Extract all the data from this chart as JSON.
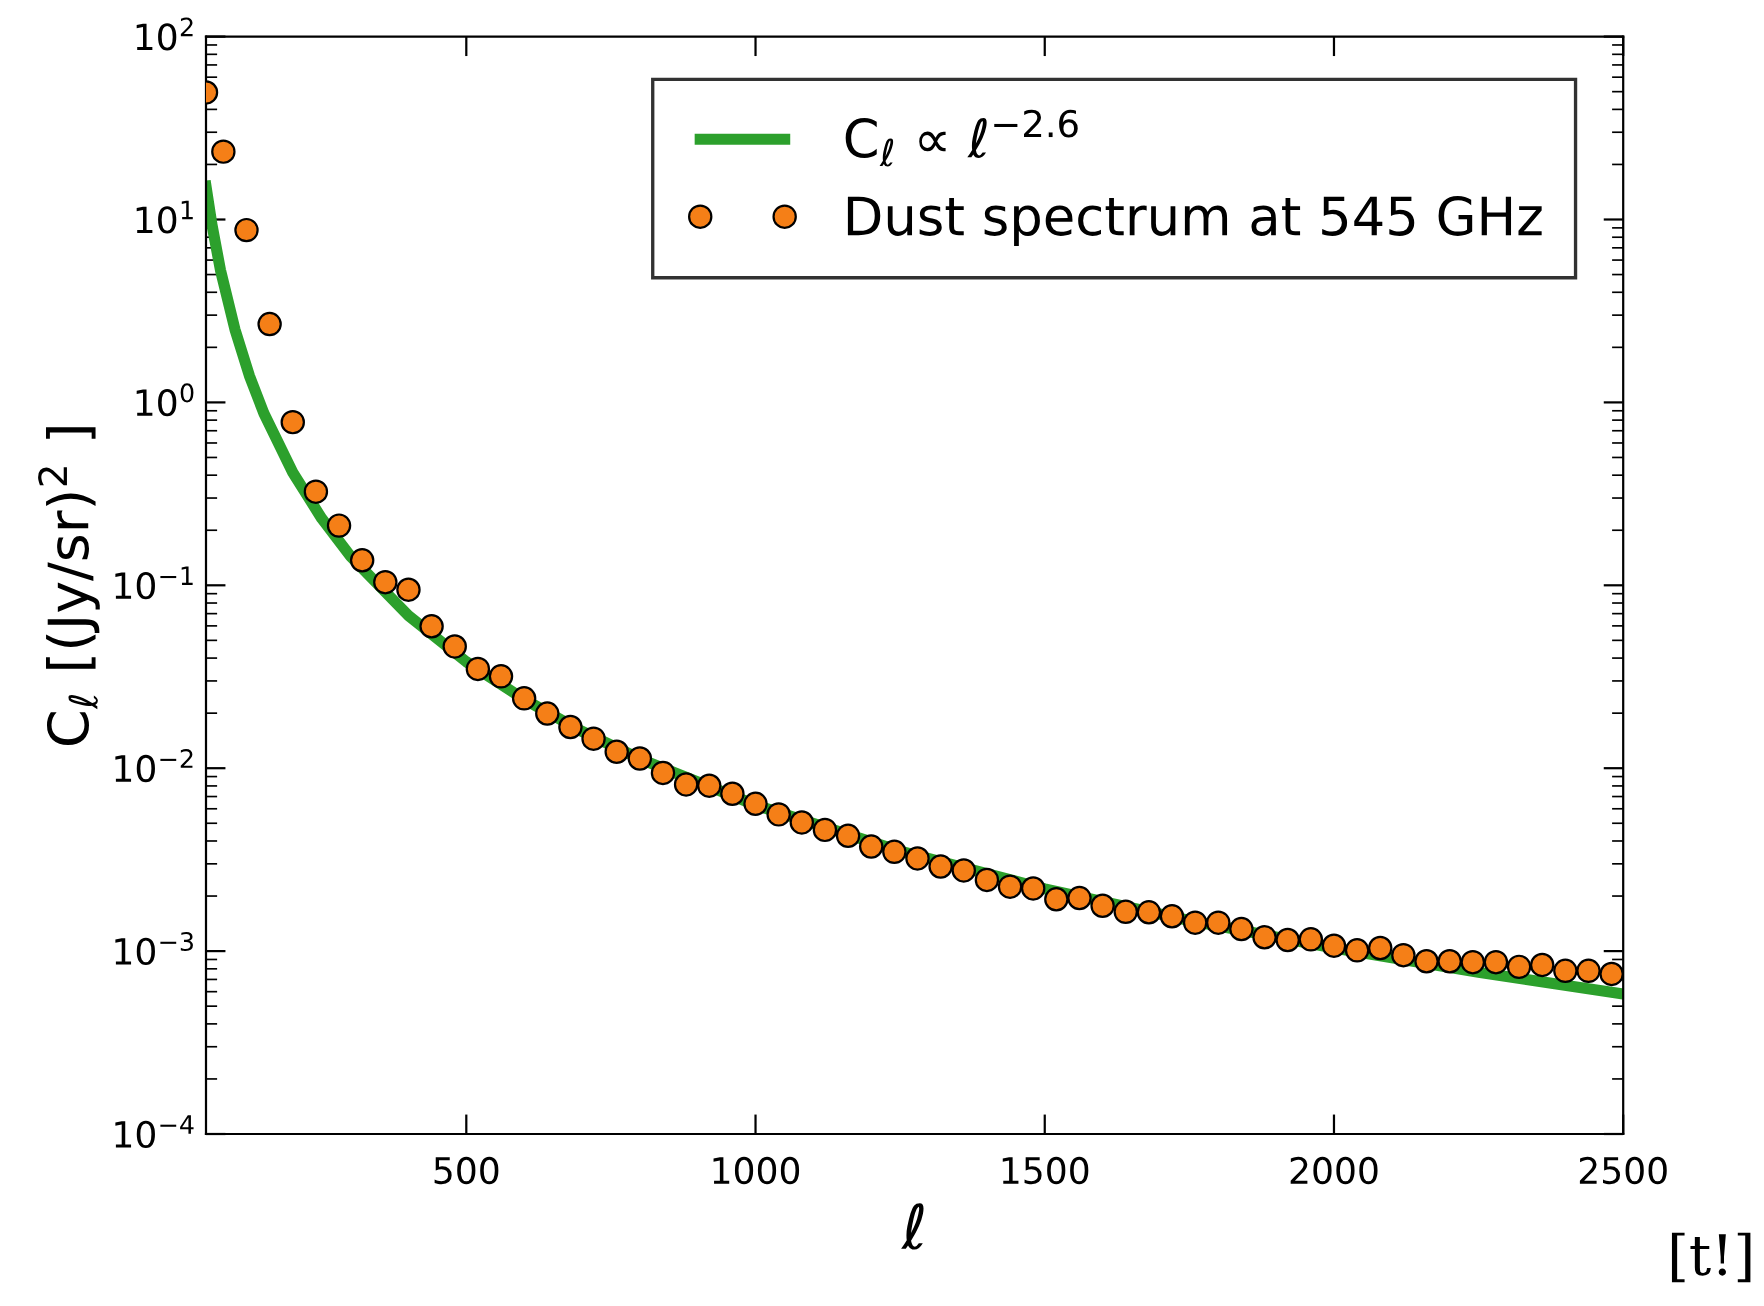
{
  "chart_data": {
    "type": "scatter",
    "xlabel": "ℓ",
    "ylabel": "C$_{ℓ}$ [(Jy/sr)$^{2}$ ]",
    "log": "y",
    "xlim": [
      50,
      2500
    ],
    "ylim": [
      0.0001,
      100
    ],
    "xticks": [
      500,
      1000,
      1500,
      2000,
      2500
    ],
    "yticks": [
      {
        "value": 0.0001,
        "label": "10$^{−4}$"
      },
      {
        "value": 0.001,
        "label": "10$^{−3}$"
      },
      {
        "value": 0.01,
        "label": "10$^{−2}$"
      },
      {
        "value": 0.1,
        "label": "10$^{−1}$"
      },
      {
        "value": 1,
        "label": "10$^{0}$"
      },
      {
        "value": 10,
        "label": "10$^{1}$"
      },
      {
        "value": 100,
        "label": "10$^{2}$"
      }
    ],
    "grid": false,
    "legend": "top right",
    "marker": "circle",
    "annotations": [
      "[t!]"
    ],
    "series": [
      {
        "name": "C$_{ℓ}$ ∝ ℓ$^{−2.6}$",
        "type": "line",
        "marker": "none",
        "line_style": "solid",
        "color": "#2ca02c",
        "x": [
          50,
          60,
          75,
          100,
          125,
          150,
          200,
          250,
          300,
          400,
          500,
          600,
          700,
          800,
          1000,
          1250,
          1500,
          1750,
          2000,
          2250,
          2500
        ],
        "values": [
          15.2,
          9.47,
          5.29,
          2.51,
          1.4,
          0.872,
          0.414,
          0.232,
          0.144,
          0.0683,
          0.0382,
          0.0238,
          0.0159,
          0.01125,
          0.00629,
          0.00352,
          0.00219,
          0.00147,
          0.00104,
          0.000765,
          0.000583
        ]
      },
      {
        "name": "Dust spectrum at 545 GHz",
        "color": "#f57f17",
        "x": [
          50,
          80,
          120,
          160,
          200,
          240,
          280,
          320,
          360,
          400,
          440,
          480,
          520,
          560,
          600,
          640,
          680,
          720,
          760,
          800,
          840,
          880,
          920,
          960,
          1000,
          1040,
          1080,
          1120,
          1160,
          1200,
          1240,
          1280,
          1320,
          1360,
          1400,
          1440,
          1480,
          1520,
          1560,
          1600,
          1640,
          1680,
          1720,
          1760,
          1800,
          1840,
          1880,
          1920,
          1960,
          2000,
          2040,
          2080,
          2120,
          2160,
          2200,
          2240,
          2280,
          2320,
          2360,
          2400,
          2440,
          2480
        ],
        "values": [
          49.5,
          23.5,
          8.75,
          2.68,
          0.78,
          0.325,
          0.212,
          0.137,
          0.104,
          0.0946,
          0.0597,
          0.0463,
          0.0349,
          0.0318,
          0.0241,
          0.0199,
          0.0168,
          0.0145,
          0.0123,
          0.0113,
          0.00942,
          0.00815,
          0.00802,
          0.00725,
          0.00639,
          0.00559,
          0.00505,
          0.0046,
          0.00427,
          0.00373,
          0.00349,
          0.00321,
          0.0029,
          0.00276,
          0.00245,
          0.00225,
          0.0022,
          0.00192,
          0.00195,
          0.00177,
          0.00164,
          0.00163,
          0.00155,
          0.00143,
          0.00143,
          0.00132,
          0.00119,
          0.00115,
          0.00116,
          0.00107,
          0.00101,
          0.00104,
          0.00095,
          0.00088,
          0.00088,
          0.00087,
          0.00087,
          0.00082,
          0.00084,
          0.00078,
          0.00078,
          0.00075
        ]
      }
    ]
  }
}
